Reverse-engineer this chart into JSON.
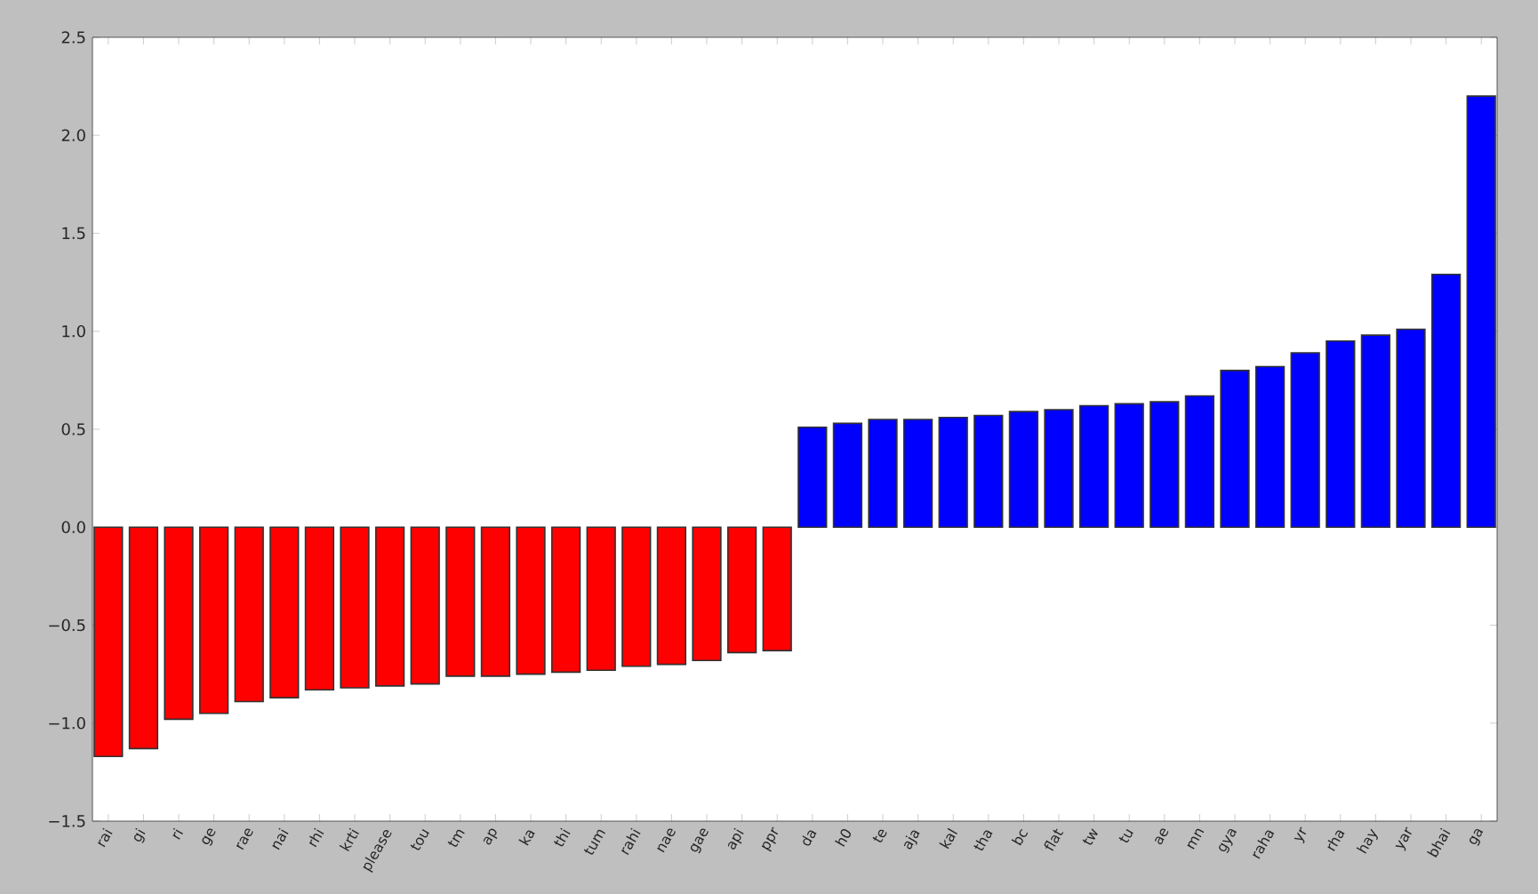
{
  "chart_data": {
    "type": "bar",
    "categories": [
      "rai",
      "gi",
      "ri",
      "ge",
      "rae",
      "nai",
      "rhi",
      "krti",
      "please",
      "tou",
      "tm",
      "ap",
      "ka",
      "thi",
      "tum",
      "rahi",
      "nae",
      "gae",
      "api",
      "ppr",
      "da",
      "h0",
      "te",
      "aja",
      "kal",
      "tha",
      "bc",
      "flat",
      "tw",
      "tu",
      "ae",
      "mn",
      "gya",
      "raha",
      "yr",
      "rha",
      "hay",
      "yar",
      "bhai",
      "ga"
    ],
    "values": [
      -1.17,
      -1.13,
      -0.98,
      -0.95,
      -0.89,
      -0.87,
      -0.83,
      -0.82,
      -0.81,
      -0.8,
      -0.76,
      -0.76,
      -0.75,
      -0.74,
      -0.73,
      -0.71,
      -0.7,
      -0.68,
      -0.64,
      -0.63,
      0.51,
      0.53,
      0.55,
      0.55,
      0.56,
      0.57,
      0.59,
      0.6,
      0.62,
      0.63,
      0.64,
      0.67,
      0.8,
      0.82,
      0.89,
      0.95,
      0.98,
      1.01,
      1.29,
      2.2
    ],
    "colors": [
      "#ff0000",
      "#ff0000",
      "#ff0000",
      "#ff0000",
      "#ff0000",
      "#ff0000",
      "#ff0000",
      "#ff0000",
      "#ff0000",
      "#ff0000",
      "#ff0000",
      "#ff0000",
      "#ff0000",
      "#ff0000",
      "#ff0000",
      "#ff0000",
      "#ff0000",
      "#ff0000",
      "#ff0000",
      "#ff0000",
      "#0000ff",
      "#0000ff",
      "#0000ff",
      "#0000ff",
      "#0000ff",
      "#0000ff",
      "#0000ff",
      "#0000ff",
      "#0000ff",
      "#0000ff",
      "#0000ff",
      "#0000ff",
      "#0000ff",
      "#0000ff",
      "#0000ff",
      "#0000ff",
      "#0000ff",
      "#0000ff",
      "#0000ff",
      "#0000ff"
    ],
    "ylim": [
      -1.5,
      2.5
    ],
    "yticks": [
      {
        "value": -1.5,
        "label": "−1.5"
      },
      {
        "value": -1.0,
        "label": "−1.0"
      },
      {
        "value": -0.5,
        "label": "−0.5"
      },
      {
        "value": 0.0,
        "label": "0.0"
      },
      {
        "value": 0.5,
        "label": "0.5"
      },
      {
        "value": 1.0,
        "label": "1.0"
      },
      {
        "value": 1.5,
        "label": "1.5"
      },
      {
        "value": 2.0,
        "label": "2.0"
      },
      {
        "value": 2.5,
        "label": "2.5"
      }
    ]
  }
}
